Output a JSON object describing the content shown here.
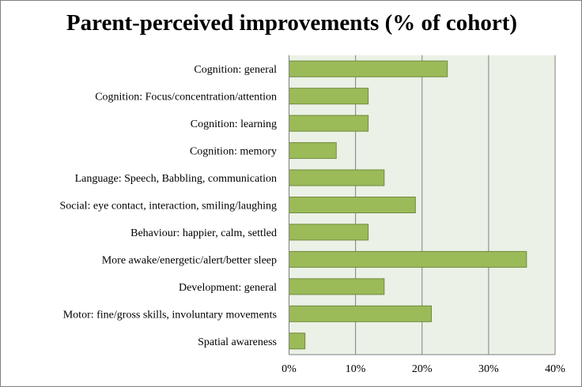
{
  "chart_data": {
    "type": "bar",
    "orientation": "horizontal",
    "title": "Parent-perceived improvements (% of cohort)",
    "categories": [
      "Cognition: general",
      "Cognition: Focus/concentration/attention",
      "Cognition: learning",
      "Cognition: memory",
      "Language: Speech, Babbling, communication",
      "Social: eye contact, interaction, smiling/laughing",
      "Behaviour: happier, calm, settled",
      "More awake/energetic/alert/better sleep",
      "Development: general",
      "Motor: fine/gross  skills, involuntary movements",
      "Spatial awareness"
    ],
    "values": [
      23.8,
      11.9,
      11.9,
      7.1,
      14.3,
      19.0,
      11.9,
      35.7,
      14.3,
      21.4,
      2.4
    ],
    "xlim": [
      0,
      40
    ],
    "xticks": [
      "0%",
      "10%",
      "20%",
      "30%",
      "40%"
    ],
    "xtick_values": [
      0,
      10,
      20,
      30,
      40
    ],
    "grid": true,
    "xlabel": "",
    "ylabel": "",
    "colors": {
      "bar": "#9bbb59",
      "bar_border": "#71893f",
      "plot_bg": "#ebf1e6",
      "grid": "#808080"
    }
  }
}
